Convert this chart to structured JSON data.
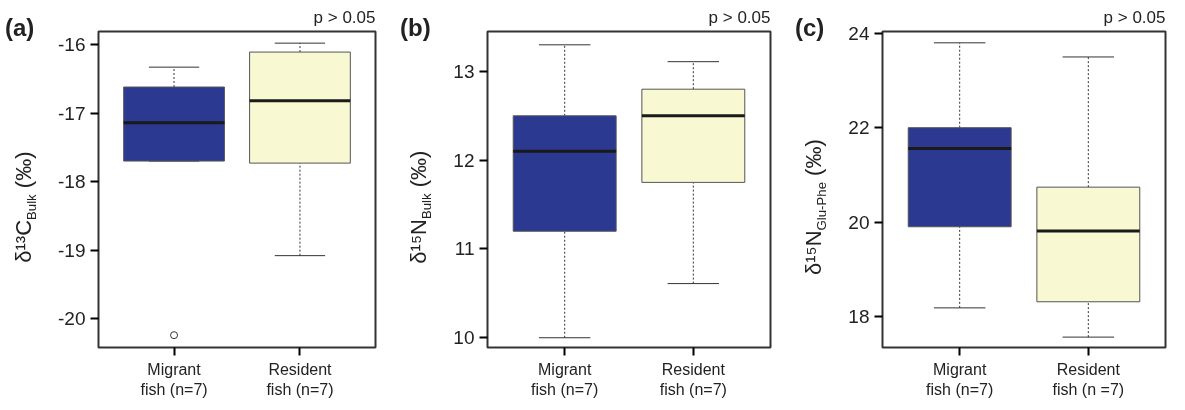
{
  "chart_data": [
    {
      "type": "box",
      "title": "(a)",
      "annotations": [
        "p > 0.05"
      ],
      "ylabel": "δ¹³C$_{Bulk}$ (‰)",
      "categories": [
        "Migrant\nfish (n=7)",
        "Resident\nfish (n=7)"
      ],
      "colors": [
        "#2b3990",
        "#f8f8d2"
      ],
      "ylim": [
        -20.42,
        -15.81
      ],
      "yticks": [
        -20,
        -19,
        -18,
        -17,
        -16
      ],
      "boxes": [
        {
          "low": -17.7,
          "q1": -17.7,
          "median": -17.14,
          "q3": -16.62,
          "high": -16.33,
          "outliers": [
            -20.24
          ]
        },
        {
          "low": -19.08,
          "q1": -17.73,
          "median": -16.82,
          "q3": -16.11,
          "high": -15.98
        }
      ]
    },
    {
      "type": "box",
      "title": "(b)",
      "annotations": [
        "p > 0.05"
      ],
      "ylabel": "δ¹⁵N$_{Bulk}$ (‰)",
      "categories": [
        "Migrant\nfish (n=7)",
        "Resident\nfish (n=7)"
      ],
      "colors": [
        "#2b3990",
        "#f8f8d2"
      ],
      "ylim": [
        9.89,
        13.45
      ],
      "yticks": [
        10,
        11,
        12,
        13
      ],
      "boxes": [
        {
          "low": 10.0,
          "q1": 11.2,
          "median": 12.1,
          "q3": 12.5,
          "high": 13.3
        },
        {
          "low": 10.61,
          "q1": 11.75,
          "median": 12.5,
          "q3": 12.8,
          "high": 13.11
        }
      ]
    },
    {
      "type": "box",
      "title": "(c)",
      "annotations": [
        "p > 0.05"
      ],
      "ylabel": "δ¹⁵N$_{Glu-Phe}$ (‰)",
      "categories": [
        "Migrant\nfish (n=7)",
        "Resident\nfish (n =7)"
      ],
      "colors": [
        "#2b3990",
        "#f8f8d2"
      ],
      "ylim": [
        17.34,
        24.04
      ],
      "yticks": [
        18,
        20,
        22,
        24
      ],
      "boxes": [
        {
          "low": 18.18,
          "q1": 19.9,
          "median": 21.56,
          "q3": 22.0,
          "high": 23.8
        },
        {
          "low": 17.56,
          "q1": 18.31,
          "median": 19.81,
          "q3": 20.74,
          "high": 23.5
        }
      ]
    }
  ]
}
